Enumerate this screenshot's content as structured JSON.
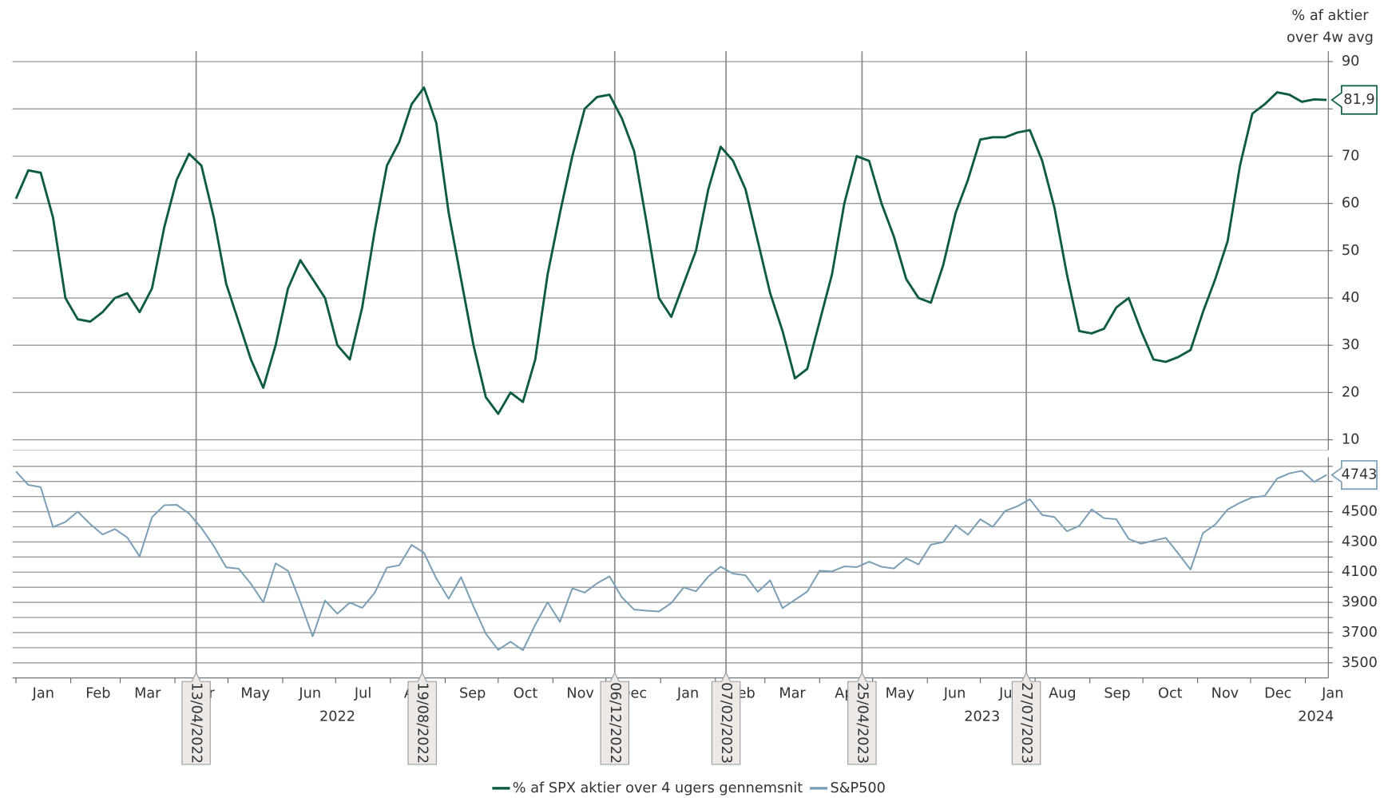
{
  "chart_data": {
    "type": "line",
    "y_label": [
      "% af aktier",
      "over 4w avg"
    ],
    "xlim": [
      "2021-12-30",
      "2024-01-14"
    ],
    "x": [
      "2022-01-01",
      "2022-01-08",
      "2022-01-15",
      "2022-01-22",
      "2022-01-29",
      "2022-02-05",
      "2022-02-12",
      "2022-02-19",
      "2022-02-26",
      "2022-03-05",
      "2022-03-12",
      "2022-03-19",
      "2022-03-26",
      "2022-04-02",
      "2022-04-09",
      "2022-04-16",
      "2022-04-23",
      "2022-04-30",
      "2022-05-07",
      "2022-05-14",
      "2022-05-21",
      "2022-05-28",
      "2022-06-04",
      "2022-06-11",
      "2022-06-18",
      "2022-06-25",
      "2022-07-02",
      "2022-07-09",
      "2022-07-16",
      "2022-07-23",
      "2022-07-30",
      "2022-08-06",
      "2022-08-13",
      "2022-08-20",
      "2022-08-27",
      "2022-09-03",
      "2022-09-10",
      "2022-09-17",
      "2022-09-24",
      "2022-10-01",
      "2022-10-08",
      "2022-10-15",
      "2022-10-22",
      "2022-10-29",
      "2022-11-05",
      "2022-11-12",
      "2022-11-19",
      "2022-11-26",
      "2022-12-03",
      "2022-12-10",
      "2022-12-17",
      "2022-12-24",
      "2022-12-31",
      "2023-01-07",
      "2023-01-14",
      "2023-01-21",
      "2023-01-28",
      "2023-02-04",
      "2023-02-11",
      "2023-02-18",
      "2023-02-25",
      "2023-03-04",
      "2023-03-11",
      "2023-03-18",
      "2023-03-25",
      "2023-04-01",
      "2023-04-08",
      "2023-04-15",
      "2023-04-22",
      "2023-04-29",
      "2023-05-06",
      "2023-05-13",
      "2023-05-20",
      "2023-05-27",
      "2023-06-03",
      "2023-06-10",
      "2023-06-17",
      "2023-06-24",
      "2023-07-01",
      "2023-07-08",
      "2023-07-15",
      "2023-07-22",
      "2023-07-29",
      "2023-08-05",
      "2023-08-12",
      "2023-08-19",
      "2023-08-26",
      "2023-09-02",
      "2023-09-09",
      "2023-09-16",
      "2023-09-23",
      "2023-09-30",
      "2023-10-07",
      "2023-10-14",
      "2023-10-21",
      "2023-10-28",
      "2023-11-04",
      "2023-11-11",
      "2023-11-18",
      "2023-11-25",
      "2023-12-02",
      "2023-12-09",
      "2023-12-16",
      "2023-12-23",
      "2023-12-30",
      "2024-01-06",
      "2024-01-13"
    ],
    "series": [
      {
        "name": "% af SPX aktier over 4 ugers gennemsnit",
        "color": "#0d5c3f",
        "last_value_label": "81,9",
        "values": [
          61,
          67,
          66.5,
          57,
          40,
          35.5,
          35,
          37,
          40,
          41,
          37,
          42,
          55,
          65,
          70.5,
          68,
          57,
          43,
          35,
          27,
          21,
          30,
          42,
          48,
          44,
          40,
          30,
          27,
          38,
          54,
          68,
          73,
          81,
          84.5,
          77,
          58,
          44,
          30,
          19,
          15.5,
          20,
          18,
          27,
          45,
          58,
          70,
          80,
          82.5,
          83,
          78,
          71,
          56,
          40,
          36,
          43,
          50,
          63,
          72,
          69,
          63,
          52,
          41,
          33,
          23,
          25,
          35,
          45,
          60,
          70,
          69,
          60,
          53,
          44,
          40,
          39,
          47,
          58,
          65,
          73.5,
          74,
          74,
          75,
          75.5,
          69,
          59,
          45,
          33,
          32.5,
          33.5,
          38,
          40,
          33,
          27,
          26.5,
          27.5,
          29,
          37,
          44,
          52,
          68,
          79,
          81,
          83.5,
          83,
          81.5,
          82,
          81.9
        ]
      },
      {
        "name": "S&P500",
        "color": "#7a9fb5",
        "axis": "y2",
        "last_value_label": "4743",
        "values": [
          4766,
          4677,
          4662,
          4398,
          4432,
          4500,
          4418,
          4349,
          4385,
          4329,
          4204,
          4463,
          4543,
          4545,
          4488,
          4392,
          4272,
          4132,
          4123,
          4023,
          3901,
          4158,
          4109,
          3901,
          3675,
          3912,
          3825,
          3899,
          3863,
          3962,
          4130,
          4145,
          4280,
          4228,
          4058,
          3924,
          4067,
          3873,
          3693,
          3586,
          3640,
          3583,
          3752,
          3901,
          3771,
          3993,
          3965,
          4026,
          4072,
          3934,
          3852,
          3845,
          3840,
          3895,
          3999,
          3973,
          4071,
          4136,
          4090,
          4079,
          3970,
          4046,
          3862,
          3917,
          3971,
          4109,
          4105,
          4138,
          4133,
          4169,
          4136,
          4124,
          4192,
          4151,
          4282,
          4299,
          4410,
          4348,
          4450,
          4399,
          4505,
          4536,
          4582,
          4478,
          4464,
          4370,
          4406,
          4515,
          4457,
          4450,
          4320,
          4288,
          4308,
          4327,
          4224,
          4117,
          4358,
          4415,
          4514,
          4559,
          4594,
          4604,
          4719,
          4754,
          4770,
          4697,
          4743
        ]
      }
    ],
    "ylim": [
      7.8,
      92.2
    ],
    "yticks": [
      10,
      20,
      30,
      40,
      50,
      60,
      70,
      80,
      90
    ],
    "y2lim": [
      3400,
      4860
    ],
    "y2ticks": [
      3500,
      3700,
      3900,
      4100,
      4300,
      4500
    ],
    "y2grid": [
      3500,
      3600,
      3700,
      3800,
      3900,
      4000,
      4100,
      4200,
      4300,
      4400,
      4500,
      4600,
      4700,
      4800
    ],
    "grid": true,
    "xticks": [
      {
        "value": "2022-01-01",
        "label": "Jan"
      },
      {
        "value": "2022-02-01",
        "label": "Feb"
      },
      {
        "value": "2022-03-01",
        "label": "Mar"
      },
      {
        "value": "2022-04-01",
        "label": "Apr"
      },
      {
        "value": "2022-05-01",
        "label": "May"
      },
      {
        "value": "2022-06-01",
        "label": "Jun"
      },
      {
        "value": "2022-07-01",
        "label": "Jul"
      },
      {
        "value": "2022-08-01",
        "label": "Aug"
      },
      {
        "value": "2022-09-01",
        "label": "Sep"
      },
      {
        "value": "2022-10-01",
        "label": "Oct"
      },
      {
        "value": "2022-11-01",
        "label": "Nov"
      },
      {
        "value": "2022-12-01",
        "label": "Dec"
      },
      {
        "value": "2023-01-01",
        "label": "Jan"
      },
      {
        "value": "2023-02-01",
        "label": "Feb"
      },
      {
        "value": "2023-03-01",
        "label": "Mar"
      },
      {
        "value": "2023-04-01",
        "label": "Apr"
      },
      {
        "value": "2023-05-01",
        "label": "May"
      },
      {
        "value": "2023-06-01",
        "label": "Jun"
      },
      {
        "value": "2023-07-01",
        "label": "Jul"
      },
      {
        "value": "2023-08-01",
        "label": "Aug"
      },
      {
        "value": "2023-09-01",
        "label": "Sep"
      },
      {
        "value": "2023-10-01",
        "label": "Oct"
      },
      {
        "value": "2023-11-01",
        "label": "Nov"
      },
      {
        "value": "2023-12-01",
        "label": "Dec"
      },
      {
        "value": "2024-01-01",
        "label": "Jan"
      }
    ],
    "xyears": [
      {
        "value": "2022-07-02",
        "label": "2022"
      },
      {
        "value": "2023-07-02",
        "label": "2023"
      },
      {
        "value": "2024-01-07",
        "label": "2024"
      }
    ],
    "annotations": [
      {
        "x": "2022-04-13",
        "label": "13/04/2022"
      },
      {
        "x": "2022-08-19",
        "label": "19/08/2022"
      },
      {
        "x": "2022-12-06",
        "label": "06/12/2022"
      },
      {
        "x": "2023-02-07",
        "label": "07/02/2023"
      },
      {
        "x": "2023-04-25",
        "label": "25/04/2023"
      },
      {
        "x": "2023-07-27",
        "label": "27/07/2023"
      }
    ]
  }
}
